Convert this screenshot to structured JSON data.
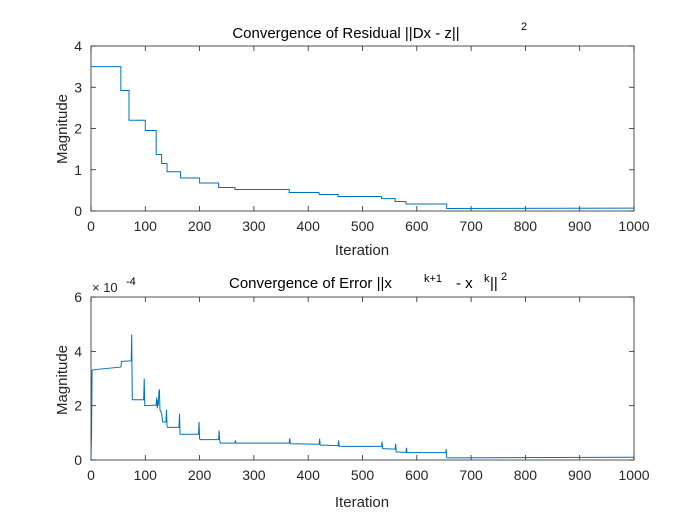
{
  "chart_data": [
    {
      "type": "line",
      "title": "Convergence of Residual ||Dx - z||",
      "title_superscript": "2",
      "xlabel": "Iteration",
      "ylabel": "Magnitude",
      "xlim": [
        0,
        1000
      ],
      "ylim": [
        0,
        4
      ],
      "xticks": [
        0,
        100,
        200,
        300,
        400,
        500,
        600,
        700,
        800,
        900,
        1000
      ],
      "yticks": [
        0,
        1,
        2,
        3,
        4
      ],
      "grid": false,
      "line_color": "#0072BD",
      "series": [
        {
          "x": [
            0,
            55,
            55,
            70,
            70,
            100,
            100,
            120,
            120,
            130,
            130,
            140,
            140,
            165,
            165,
            200,
            200,
            235,
            235,
            265,
            265,
            365,
            365,
            420,
            420,
            455,
            455,
            535,
            535,
            560,
            560,
            580,
            580,
            655,
            655,
            1000
          ],
          "y": [
            3.5,
            3.5,
            2.92,
            2.92,
            2.2,
            2.2,
            1.95,
            1.95,
            1.37,
            1.37,
            1.15,
            1.15,
            0.95,
            0.95,
            0.8,
            0.8,
            0.68,
            0.68,
            0.57,
            0.57,
            0.52,
            0.52,
            0.45,
            0.45,
            0.4,
            0.4,
            0.35,
            0.35,
            0.3,
            0.3,
            0.23,
            0.23,
            0.17,
            0.17,
            0.06,
            0.07
          ]
        }
      ]
    },
    {
      "type": "line",
      "title": "Convergence of Error ||x",
      "title_sup1": "k+1",
      "title_mid": "- x",
      "title_sup2": "k",
      "title_end": "||",
      "title_sup3": "2",
      "xlabel": "Iteration",
      "ylabel": "Magnitude",
      "y_multiplier": "× 10",
      "y_exponent": "-4",
      "xlim": [
        0,
        1000
      ],
      "ylim": [
        0,
        6
      ],
      "xticks": [
        0,
        100,
        200,
        300,
        400,
        500,
        600,
        700,
        800,
        900,
        1000
      ],
      "yticks": [
        0,
        2,
        4,
        6
      ],
      "grid": false,
      "line_color": "#0072BD",
      "series": [
        {
          "x": [
            0,
            1,
            2,
            3,
            55,
            56,
            57,
            74,
            75,
            76,
            77,
            97,
            98,
            99,
            100,
            120,
            121,
            122,
            123,
            124,
            125,
            126,
            127,
            128,
            130,
            131,
            132,
            138,
            139,
            140,
            141,
            162,
            163,
            164,
            165,
            198,
            199,
            200,
            201,
            235,
            236,
            237,
            238,
            265,
            266,
            267,
            365,
            366,
            367,
            420,
            421,
            422,
            455,
            456,
            457,
            535,
            536,
            537,
            560,
            561,
            562,
            580,
            581,
            582,
            653,
            654,
            655,
            656,
            1000
          ],
          "y": [
            0.05,
            0.9,
            3.3,
            3.32,
            3.42,
            3.62,
            3.63,
            3.65,
            4.62,
            2.22,
            2.22,
            2.22,
            3.0,
            2.0,
            2.0,
            2.02,
            2.3,
            1.9,
            2.2,
            2.0,
            2.5,
            2.6,
            1.85,
            1.8,
            1.72,
            1.55,
            1.4,
            1.4,
            1.85,
            1.25,
            1.2,
            1.2,
            1.7,
            0.95,
            0.95,
            0.95,
            1.4,
            0.78,
            0.75,
            0.75,
            1.08,
            0.72,
            0.62,
            0.62,
            0.72,
            0.62,
            0.62,
            0.8,
            0.6,
            0.58,
            0.78,
            0.55,
            0.53,
            0.72,
            0.5,
            0.5,
            0.68,
            0.42,
            0.4,
            0.6,
            0.3,
            0.28,
            0.45,
            0.27,
            0.27,
            0.4,
            0.1,
            0.08,
            0.1
          ]
        }
      ]
    }
  ]
}
